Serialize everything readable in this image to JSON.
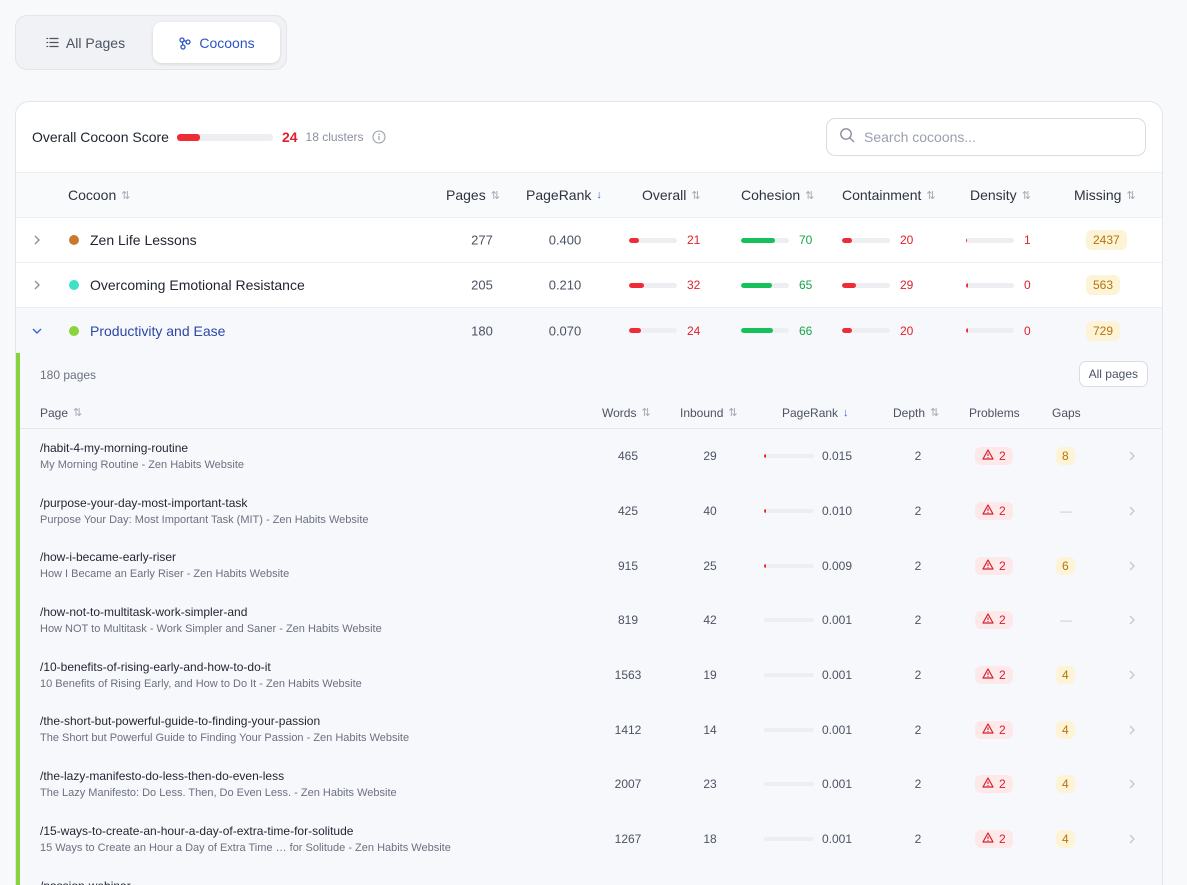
{
  "tabs": [
    {
      "label": "All Pages",
      "icon": "list-icon",
      "active": false
    },
    {
      "label": "Cocoons",
      "icon": "cluster-icon",
      "active": true
    }
  ],
  "header": {
    "score_label": "Overall Cocoon Score",
    "score_value": "24",
    "score_fraction": 0.24,
    "clusters": "18 clusters",
    "search_placeholder": "Search cocoons..."
  },
  "columns": {
    "cocoon": "Cocoon",
    "pages": "Pages",
    "pagerank": "PageRank",
    "overall": "Overall",
    "cohesion": "Cohesion",
    "containment": "Containment",
    "density": "Density",
    "missing": "Missing"
  },
  "cocoons": [
    {
      "name": "Zen Life Lessons",
      "color": "#c87a2e",
      "pages": "277",
      "pagerank": "0.400",
      "overall": "21",
      "overall_frac": 0.21,
      "cohesion": "70",
      "cohesion_frac": 0.7,
      "containment": "20",
      "containment_frac": 0.2,
      "density": "1",
      "density_frac": 0.01,
      "missing": "2437"
    },
    {
      "name": "Overcoming Emotional Resistance",
      "color": "#3ee0c8",
      "pages": "205",
      "pagerank": "0.210",
      "overall": "32",
      "overall_frac": 0.32,
      "cohesion": "65",
      "cohesion_frac": 0.65,
      "containment": "29",
      "containment_frac": 0.29,
      "density": "0",
      "density_frac": 0,
      "missing": "563"
    },
    {
      "name": "Productivity and Ease",
      "color": "#8bd23b",
      "pages": "180",
      "pagerank": "0.070",
      "overall": "24",
      "overall_frac": 0.24,
      "cohesion": "66",
      "cohesion_frac": 0.66,
      "containment": "20",
      "containment_frac": 0.2,
      "density": "0",
      "density_frac": 0,
      "missing": "729"
    }
  ],
  "detail": {
    "pages_count": "180 pages",
    "all_pages_label": "All pages",
    "columns": {
      "page": "Page",
      "words": "Words",
      "inbound": "Inbound",
      "pagerank": "PageRank",
      "depth": "Depth",
      "problems": "Problems",
      "gaps": "Gaps"
    },
    "rows": [
      {
        "path": "/habit-4-my-morning-routine",
        "title": "My Morning Routine - Zen Habits Website",
        "words": "465",
        "inbound": "29",
        "pagerank": "0.015",
        "pr_frac": 0.04,
        "depth": "2",
        "problems": "2",
        "gaps": "8"
      },
      {
        "path": "/purpose-your-day-most-important-task",
        "title": "Purpose Your Day: Most Important Task (MIT) - Zen Habits Website",
        "words": "425",
        "inbound": "40",
        "pagerank": "0.010",
        "pr_frac": 0.03,
        "depth": "2",
        "problems": "2",
        "gaps": "—"
      },
      {
        "path": "/how-i-became-early-riser",
        "title": "How I Became an Early Riser - Zen Habits Website",
        "words": "915",
        "inbound": "25",
        "pagerank": "0.009",
        "pr_frac": 0.025,
        "depth": "2",
        "problems": "2",
        "gaps": "6"
      },
      {
        "path": "/how-not-to-multitask-work-simpler-and",
        "title": "How NOT to Multitask - Work Simpler and Saner - Zen Habits Website",
        "words": "819",
        "inbound": "42",
        "pagerank": "0.001",
        "pr_frac": 0,
        "depth": "2",
        "problems": "2",
        "gaps": "—"
      },
      {
        "path": "/10-benefits-of-rising-early-and-how-to-do-it",
        "title": "10 Benefits of Rising Early, and How to Do It - Zen Habits Website",
        "words": "1563",
        "inbound": "19",
        "pagerank": "0.001",
        "pr_frac": 0,
        "depth": "2",
        "problems": "2",
        "gaps": "4"
      },
      {
        "path": "/the-short-but-powerful-guide-to-finding-your-passion",
        "title": "The Short but Powerful Guide to Finding Your Passion - Zen Habits Website",
        "words": "1412",
        "inbound": "14",
        "pagerank": "0.001",
        "pr_frac": 0,
        "depth": "2",
        "problems": "2",
        "gaps": "4"
      },
      {
        "path": "/the-lazy-manifesto-do-less-then-do-even-less",
        "title": "The Lazy Manifesto: Do Less. Then, Do Even Less. - Zen Habits Website",
        "words": "2007",
        "inbound": "23",
        "pagerank": "0.001",
        "pr_frac": 0,
        "depth": "2",
        "problems": "2",
        "gaps": "4"
      },
      {
        "path": "/15-ways-to-create-an-hour-a-day-of-extra-time-for-solitude",
        "title": "15 Ways to Create an Hour a Day of Extra Time … for Solitude - Zen Habits Website",
        "words": "1267",
        "inbound": "18",
        "pagerank": "0.001",
        "pr_frac": 0,
        "depth": "2",
        "problems": "2",
        "gaps": "4"
      },
      {
        "path": "/passion-webinar",
        "title": "",
        "words": "",
        "inbound": "",
        "pagerank": "",
        "pr_frac": 0,
        "depth": "",
        "problems": "",
        "gaps": ""
      }
    ]
  }
}
